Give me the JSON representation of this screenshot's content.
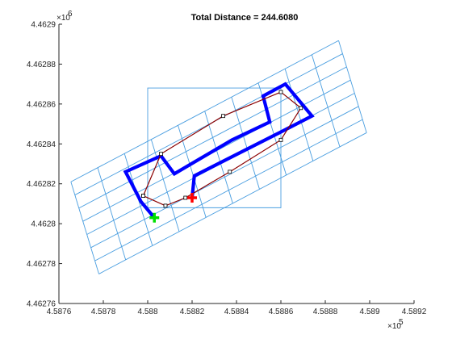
{
  "chart_data": {
    "type": "line",
    "title": "Total Distance = 244.6080",
    "xlabel": "",
    "ylabel": "",
    "xlim": [
      458760,
      458920
    ],
    "ylim": [
      4462760,
      4462900
    ],
    "x_ticks": [
      458760,
      458780,
      458800,
      458820,
      458840,
      458860,
      458880,
      458900,
      458920
    ],
    "y_ticks": [
      4462760,
      4462780,
      4462800,
      4462820,
      4462840,
      4462860,
      4462880,
      4462900
    ],
    "x_tick_labels": [
      "4.5876",
      "4.5878",
      "4.588",
      "4.5882",
      "4.5884",
      "4.5886",
      "4.5888",
      "4.589",
      "4.5892"
    ],
    "y_tick_labels": [
      "4.46276",
      "4.46278",
      "4.4628",
      "4.46282",
      "4.46284",
      "4.46286",
      "4.46288",
      "4.4629"
    ],
    "x_exponent": "×10",
    "x_exponent_power": "5",
    "y_exponent": "×10",
    "y_exponent_power": "6",
    "grid": false,
    "colors": {
      "grid_lines": "#4a9ee0",
      "box": "#4a9ee0",
      "route": "#0000ff",
      "path": "#8b0000",
      "start_marker": "#00e000",
      "end_marker": "#ff0000",
      "axes": "#262626"
    },
    "rotated_grid": {
      "lines_a": [
        [
          [
            458765.4,
            4462821.0
          ],
          [
            458886.0,
            4462891.8
          ]
        ],
        [
          [
            458767.2,
            4462814.4
          ],
          [
            458887.8,
            4462885.2
          ]
        ],
        [
          [
            458769.0,
            4462807.8
          ],
          [
            458889.6,
            4462878.6
          ]
        ],
        [
          [
            458770.8,
            4462801.2
          ],
          [
            458891.4,
            4462872.0
          ]
        ],
        [
          [
            458772.6,
            4462794.6
          ],
          [
            458893.2,
            4462865.4
          ]
        ],
        [
          [
            458774.4,
            4462788.0
          ],
          [
            458895.0,
            4462858.8
          ]
        ],
        [
          [
            458776.2,
            4462781.4
          ],
          [
            458896.8,
            4462852.2
          ]
        ],
        [
          [
            458778.0,
            4462774.8
          ],
          [
            458898.6,
            4462845.6
          ]
        ]
      ],
      "lines_b": [
        [
          [
            458765.4,
            4462821.0
          ],
          [
            458778.0,
            4462774.8
          ]
        ],
        [
          [
            458777.46,
            4462828.08
          ],
          [
            458790.06,
            4462781.88
          ]
        ],
        [
          [
            458789.52,
            4462835.16
          ],
          [
            458802.12,
            4462788.96
          ]
        ],
        [
          [
            458801.58,
            4462842.24
          ],
          [
            458814.18,
            4462796.04
          ]
        ],
        [
          [
            458813.64,
            4462849.32
          ],
          [
            458826.24,
            4462803.12
          ]
        ],
        [
          [
            458825.7,
            4462856.4
          ],
          [
            458838.3,
            4462810.2
          ]
        ],
        [
          [
            458837.76,
            4462863.48
          ],
          [
            458850.36,
            4462817.28
          ]
        ],
        [
          [
            458849.82,
            4462870.56
          ],
          [
            458862.42,
            4462824.36
          ]
        ],
        [
          [
            458861.88,
            4462877.64
          ],
          [
            458874.48,
            4462831.44
          ]
        ],
        [
          [
            458873.94,
            4462884.72
          ],
          [
            458886.54,
            4462838.52
          ]
        ],
        [
          [
            458886.0,
            4462891.8
          ],
          [
            458898.6,
            4462845.6
          ]
        ]
      ]
    },
    "bounding_box": [
      [
        458800,
        4462808
      ],
      [
        458860,
        4462808
      ],
      [
        458860,
        4462868
      ],
      [
        458800,
        4462868
      ],
      [
        458800,
        4462808
      ]
    ],
    "series": [
      {
        "values": [
          [
            458803,
            4462803
          ],
          [
            458797,
            4462811
          ],
          [
            458790,
            4462826
          ],
          [
            458806,
            4462834
          ],
          [
            458812,
            4462825
          ],
          [
            458838,
            4462842
          ],
          [
            458855,
            4462851
          ],
          [
            458852,
            4462864
          ],
          [
            458862,
            4462870
          ],
          [
            458874,
            4462854
          ],
          [
            458860,
            4462846
          ],
          [
            458821,
            4462824
          ],
          [
            458820,
            4462813
          ]
        ],
        "style": "route"
      },
      {
        "values": [
          [
            458798,
            4462814
          ],
          [
            458808,
            4462809
          ],
          [
            458817,
            4462813
          ],
          [
            458837,
            4462826
          ],
          [
            458860,
            4462842
          ],
          [
            458869,
            4462858
          ],
          [
            458860,
            4462866
          ],
          [
            458834,
            4462854
          ],
          [
            458806,
            4462835
          ],
          [
            458798,
            4462814
          ]
        ],
        "style": "path"
      }
    ],
    "markers": [
      {
        "type": "start",
        "x": 458803,
        "y": 4462803
      },
      {
        "type": "end",
        "x": 458820,
        "y": 4462813
      }
    ]
  }
}
